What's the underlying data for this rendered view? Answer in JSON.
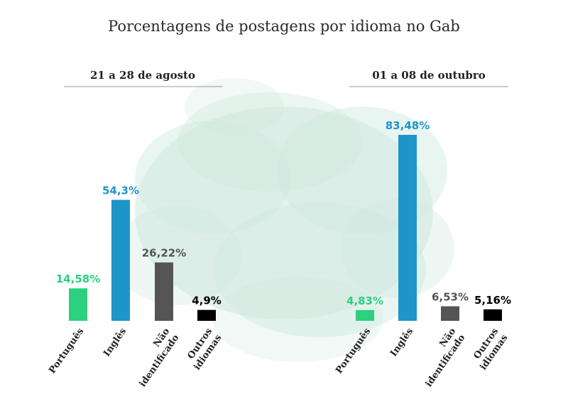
{
  "title": "Porcentagens de postagens por idioma no Gab",
  "colors": {
    "Português": "#2bd17e",
    "Inglês": "#1e95c9",
    "Não identificado": "#555555",
    "Outros idiomas": "#000000",
    "splash": "#cfe8df"
  },
  "chart_data": [
    {
      "type": "bar",
      "title": "21 a 28 de agosto",
      "categories": [
        "Português",
        "Inglês",
        "Não identificado",
        "Outros idiomas"
      ],
      "values": [
        14.58,
        54.3,
        26.22,
        4.9
      ],
      "labels": [
        "14,58%",
        "54,3%",
        "26,22%",
        "4,9%"
      ],
      "xlabel": "",
      "ylabel": "",
      "ylim": [
        0,
        83.48
      ],
      "grid": false
    },
    {
      "type": "bar",
      "title": "01 a 08 de outubro",
      "categories": [
        "Português",
        "Inglês",
        "Não identificado",
        "Outros idiomas"
      ],
      "values": [
        4.83,
        83.48,
        6.53,
        5.16
      ],
      "labels": [
        "4,83%",
        "83,48%",
        "6,53%",
        "5,16%"
      ],
      "xlabel": "",
      "ylabel": "",
      "ylim": [
        0,
        83.48
      ],
      "grid": false
    }
  ]
}
